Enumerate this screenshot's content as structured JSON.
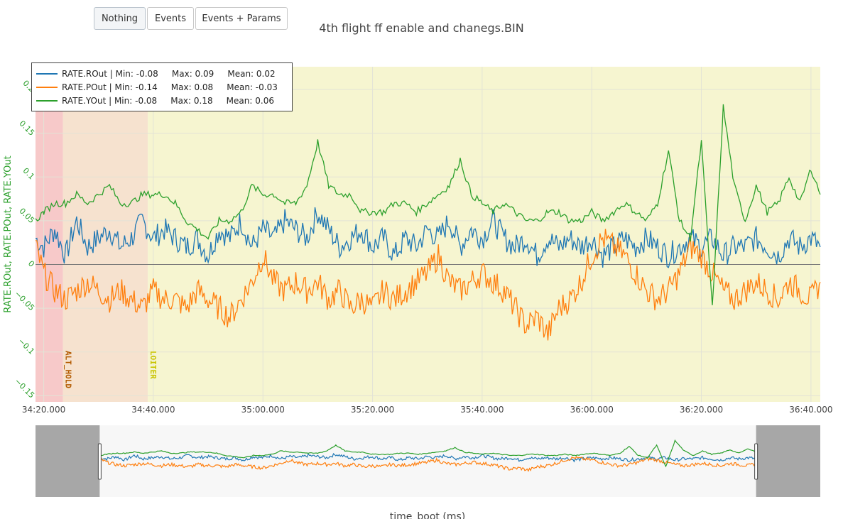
{
  "toolbar": {
    "buttons": [
      {
        "label": "Nothing",
        "active": true
      },
      {
        "label": "Events",
        "active": false
      },
      {
        "label": "Events + Params",
        "active": false
      }
    ]
  },
  "chart_data": {
    "type": "line",
    "title": "4th flight ff enable and chanegs.BIN",
    "xlabel": "time_boot (ms)",
    "ylabel": "RATE.ROut, RATE.POut, RATE.YOut",
    "x_range_s": [
      2058.5,
      2201.7
    ],
    "x_unit": "seconds since 34:00.000",
    "xlim": [
      "34:18.500",
      "36:41.700"
    ],
    "ylim": [
      -0.157,
      0.226
    ],
    "x_ticks": [
      "34:20.000",
      "34:40.000",
      "35:00.000",
      "35:20.000",
      "35:40.000",
      "36:00.000",
      "36:20.000",
      "36:40.000"
    ],
    "y_ticks": [
      {
        "value": -0.15,
        "label": "−0.15"
      },
      {
        "value": -0.1,
        "label": "−0.1"
      },
      {
        "value": -0.05,
        "label": "−0.05"
      },
      {
        "value": 0,
        "label": "0"
      },
      {
        "value": 0.05,
        "label": "0.05"
      },
      {
        "value": 0.1,
        "label": "0.1"
      },
      {
        "value": 0.15,
        "label": "0.15"
      },
      {
        "value": 0.2,
        "label": "0.2"
      }
    ],
    "grid": true,
    "legend_placement": "top-left",
    "mode_regions": [
      {
        "label": "",
        "start": "34:18.500",
        "end": "34:23.500",
        "color": "#f7c9c9"
      },
      {
        "label": "ALT_HOLD",
        "start": "34:23.500",
        "end": "34:39.000",
        "color": "#f6e2cf",
        "label_color": "#b35a00"
      },
      {
        "label": "LOITER",
        "start": "34:39.000",
        "end": "36:41.700",
        "color": "#f6f5d0",
        "label_color": "#c9c400"
      }
    ],
    "series": [
      {
        "name": "RATE.ROut",
        "color": "#1f77b4",
        "legend": "RATE.ROut | Min: -0.08     Max: 0.09     Mean: 0.02",
        "x": [
          2058.5,
          2060,
          2062,
          2064,
          2066,
          2068,
          2070,
          2072,
          2074,
          2076,
          2078,
          2080,
          2082,
          2084,
          2086,
          2088,
          2090,
          2092,
          2094,
          2096,
          2098,
          2100,
          2102,
          2104,
          2106,
          2108,
          2110,
          2112,
          2114,
          2116,
          2118,
          2120,
          2122,
          2124,
          2126,
          2128,
          2130,
          2132,
          2134,
          2136,
          2138,
          2140,
          2142,
          2144,
          2146,
          2148,
          2150,
          2152,
          2154,
          2156,
          2158,
          2160,
          2162,
          2164,
          2166,
          2168,
          2170,
          2172,
          2174,
          2176,
          2178,
          2180,
          2182,
          2184,
          2186,
          2188,
          2190,
          2192,
          2194,
          2196,
          2198,
          2200,
          2201.7
        ],
        "y": [
          0.03,
          0.02,
          0.04,
          0.01,
          0.05,
          0.02,
          0.03,
          0.04,
          0.02,
          0.03,
          0.05,
          0.03,
          0.04,
          0.03,
          0.02,
          0.03,
          0.01,
          0.04,
          0.03,
          0.05,
          0.02,
          0.04,
          0.03,
          0.05,
          0.04,
          0.03,
          0.06,
          0.04,
          0.02,
          0.03,
          0.04,
          0.02,
          0.03,
          0.01,
          0.03,
          0.02,
          0.04,
          0.03,
          0.05,
          0.02,
          0.04,
          0.03,
          0.05,
          0.03,
          0.02,
          0.03,
          0.01,
          0.03,
          0.02,
          0.03,
          0.02,
          0.03,
          0.01,
          0.02,
          0.03,
          0.02,
          0.03,
          0.02,
          0.01,
          0.02,
          0.03,
          0.02,
          0.03,
          0.01,
          0.02,
          0.02,
          0.03,
          0.02,
          0.01,
          0.03,
          0.02,
          0.03,
          0.02
        ]
      },
      {
        "name": "RATE.POut",
        "color": "#ff7f0e",
        "legend": "RATE.POut | Min: -0.14     Max: 0.08     Mean: -0.03",
        "x": [
          2058.5,
          2060,
          2062,
          2064,
          2066,
          2068,
          2070,
          2072,
          2074,
          2076,
          2078,
          2080,
          2082,
          2084,
          2086,
          2088,
          2090,
          2092,
          2094,
          2096,
          2098,
          2100,
          2102,
          2104,
          2106,
          2108,
          2110,
          2112,
          2114,
          2116,
          2118,
          2120,
          2122,
          2124,
          2126,
          2128,
          2130,
          2132,
          2134,
          2136,
          2138,
          2140,
          2142,
          2144,
          2146,
          2148,
          2150,
          2152,
          2154,
          2156,
          2158,
          2160,
          2162,
          2164,
          2166,
          2168,
          2170,
          2172,
          2174,
          2176,
          2178,
          2180,
          2182,
          2184,
          2186,
          2188,
          2190,
          2192,
          2194,
          2196,
          2198,
          2200,
          2201.7
        ],
        "y": [
          0.02,
          -0.01,
          -0.03,
          -0.04,
          -0.03,
          -0.02,
          -0.03,
          -0.04,
          -0.03,
          -0.04,
          -0.05,
          -0.03,
          -0.04,
          -0.04,
          -0.05,
          -0.03,
          -0.04,
          -0.05,
          -0.06,
          -0.04,
          -0.02,
          0.01,
          -0.02,
          -0.03,
          -0.02,
          -0.03,
          -0.02,
          -0.04,
          -0.03,
          -0.05,
          -0.04,
          -0.05,
          -0.03,
          -0.04,
          -0.03,
          -0.02,
          -0.01,
          0.01,
          -0.02,
          -0.03,
          -0.02,
          -0.01,
          -0.02,
          -0.03,
          -0.05,
          -0.07,
          -0.06,
          -0.08,
          -0.05,
          -0.04,
          -0.02,
          0.01,
          0.03,
          0.02,
          0.01,
          -0.01,
          -0.03,
          -0.04,
          -0.03,
          -0.01,
          0.02,
          0.01,
          -0.01,
          -0.03,
          -0.04,
          -0.03,
          -0.02,
          -0.03,
          -0.04,
          -0.02,
          -0.03,
          -0.04,
          -0.02
        ]
      },
      {
        "name": "RATE.YOut",
        "color": "#2ca02c",
        "legend": "RATE.YOut | Min: -0.08     Max: 0.18     Mean: 0.06",
        "x": [
          2058.5,
          2060,
          2062,
          2064,
          2066,
          2068,
          2070,
          2072,
          2074,
          2076,
          2078,
          2080,
          2082,
          2084,
          2086,
          2088,
          2090,
          2092,
          2094,
          2096,
          2098,
          2100,
          2102,
          2104,
          2106,
          2108,
          2110,
          2112,
          2114,
          2116,
          2118,
          2120,
          2122,
          2124,
          2126,
          2128,
          2130,
          2132,
          2134,
          2136,
          2138,
          2140,
          2142,
          2144,
          2146,
          2148,
          2150,
          2152,
          2154,
          2156,
          2158,
          2160,
          2162,
          2164,
          2166,
          2168,
          2170,
          2172,
          2174,
          2176,
          2178,
          2180,
          2182,
          2184,
          2186,
          2188,
          2190,
          2192,
          2194,
          2196,
          2198,
          2200,
          2201.7
        ],
        "y": [
          0.05,
          0.06,
          0.07,
          0.07,
          0.08,
          0.07,
          0.08,
          0.09,
          0.07,
          0.07,
          0.08,
          0.08,
          0.08,
          0.07,
          0.05,
          0.04,
          0.03,
          0.05,
          0.05,
          0.06,
          0.09,
          0.08,
          0.08,
          0.07,
          0.07,
          0.09,
          0.14,
          0.09,
          0.08,
          0.08,
          0.06,
          0.06,
          0.06,
          0.07,
          0.07,
          0.06,
          0.07,
          0.08,
          0.09,
          0.12,
          0.08,
          0.07,
          0.06,
          0.07,
          0.06,
          0.05,
          0.05,
          0.06,
          0.06,
          0.05,
          0.05,
          0.06,
          0.05,
          0.06,
          0.07,
          0.06,
          0.05,
          0.07,
          0.13,
          0.05,
          0.03,
          0.14,
          -0.05,
          0.18,
          0.09,
          0.05,
          0.09,
          0.06,
          0.07,
          0.1,
          0.07,
          0.11,
          0.08
        ]
      }
    ]
  },
  "navigator": {
    "background": "#f7f7f7",
    "mask_color": "#999999",
    "selection_start": "34:18.500",
    "selection_end": "36:41.700"
  }
}
